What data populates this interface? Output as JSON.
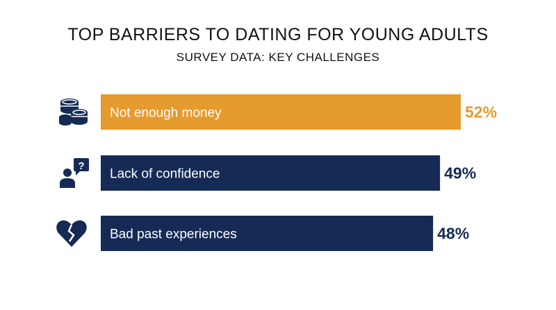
{
  "title": "TOP BARRIERS TO DATING FOR YOUNG ADULTS",
  "subtitle": "SURVEY DATA: KEY CHALLENGES",
  "colors": {
    "highlight": "#E69B2E",
    "bar": "#152B55",
    "icon": "#152B55"
  },
  "chart_data": {
    "type": "bar",
    "orientation": "horizontal",
    "categories": [
      "Not enough money",
      "Lack of confidence",
      "Bad past experiences"
    ],
    "values": [
      52,
      49,
      48
    ],
    "value_labels": [
      "52%",
      "49%",
      "48%"
    ],
    "icons": [
      "coins-icon",
      "person-question-icon",
      "broken-heart-icon"
    ],
    "highlight_index": 0,
    "xlim": [
      0,
      52
    ]
  }
}
